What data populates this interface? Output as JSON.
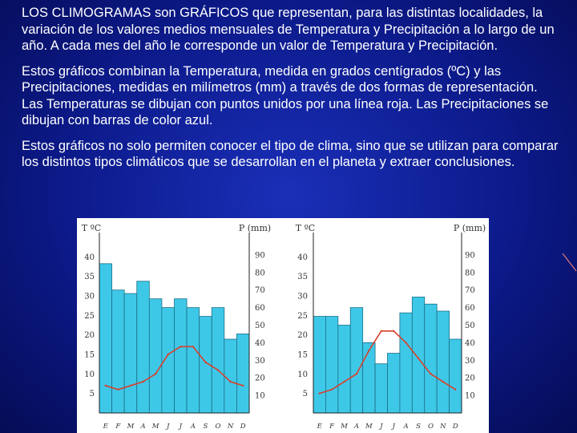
{
  "paragraphs": [
    "LOS CLIMOGRAMAS son GRÁFICOS que representan, para las distintas localidades, la variación de los valores medios mensuales de Temperatura y Precipitación a lo largo de un año. A cada mes del año le corresponde un valor de Temperatura y Precipitación.",
    "Estos gráficos combinan la Temperatura, medida en grados centígrados (ºC) y las Precipitaciones, medidas en milímetros (mm) a través de dos formas de representación. Las Temperaturas se dibujan con puntos unidos por una línea roja. Las Precipitaciones se dibujan con barras de color azul.",
    "Estos gráficos no solo permiten conocer el tipo de clima, sino que se utilizan para comparar los distintos tipos climáticos que se desarrollan en el planeta y extraer conclusiones."
  ],
  "colors": {
    "bar_fill": "#3ec8e8",
    "bar_stroke": "#1a6f86",
    "temp_line": "#d8402a",
    "axis": "#222222"
  },
  "chart_data": [
    {
      "type": "bar",
      "left_axis_label": "T ºC",
      "right_axis_label": "P (mm)",
      "categories": [
        "E",
        "F",
        "M",
        "A",
        "M",
        "J",
        "J",
        "A",
        "S",
        "O",
        "N",
        "D"
      ],
      "left_ticks": [
        "40",
        "35",
        "30",
        "25",
        "20",
        "15",
        "10",
        "5"
      ],
      "right_ticks": [
        "90",
        "80",
        "70",
        "60",
        "50",
        "40",
        "30",
        "20",
        "10"
      ],
      "ylim_temp": [
        0,
        45
      ],
      "ylim_precip": [
        0,
        100
      ],
      "series": [
        {
          "values": [
            85,
            70,
            68,
            75,
            65,
            60,
            65,
            60,
            55,
            60,
            42,
            45
          ]
        },
        {
          "values": [
            7,
            6,
            7,
            8,
            10,
            15,
            17,
            17,
            13,
            11,
            8,
            7
          ]
        }
      ]
    },
    {
      "type": "bar",
      "left_axis_label": "T ºC",
      "right_axis_label": "P (mm)",
      "categories": [
        "E",
        "F",
        "M",
        "A",
        "M",
        "J",
        "J",
        "A",
        "S",
        "O",
        "N",
        "D"
      ],
      "left_ticks": [
        "40",
        "35",
        "30",
        "25",
        "20",
        "15",
        "10",
        "5"
      ],
      "right_ticks": [
        "90",
        "80",
        "70",
        "60",
        "50",
        "40",
        "30",
        "20",
        "10"
      ],
      "ylim_temp": [
        0,
        45
      ],
      "ylim_precip": [
        0,
        100
      ],
      "series": [
        {
          "values": [
            55,
            55,
            50,
            60,
            40,
            28,
            34,
            57,
            66,
            62,
            58,
            42
          ]
        },
        {
          "values": [
            5,
            6,
            8,
            10,
            16,
            21,
            21,
            18,
            14,
            10,
            8,
            6
          ]
        }
      ]
    }
  ]
}
